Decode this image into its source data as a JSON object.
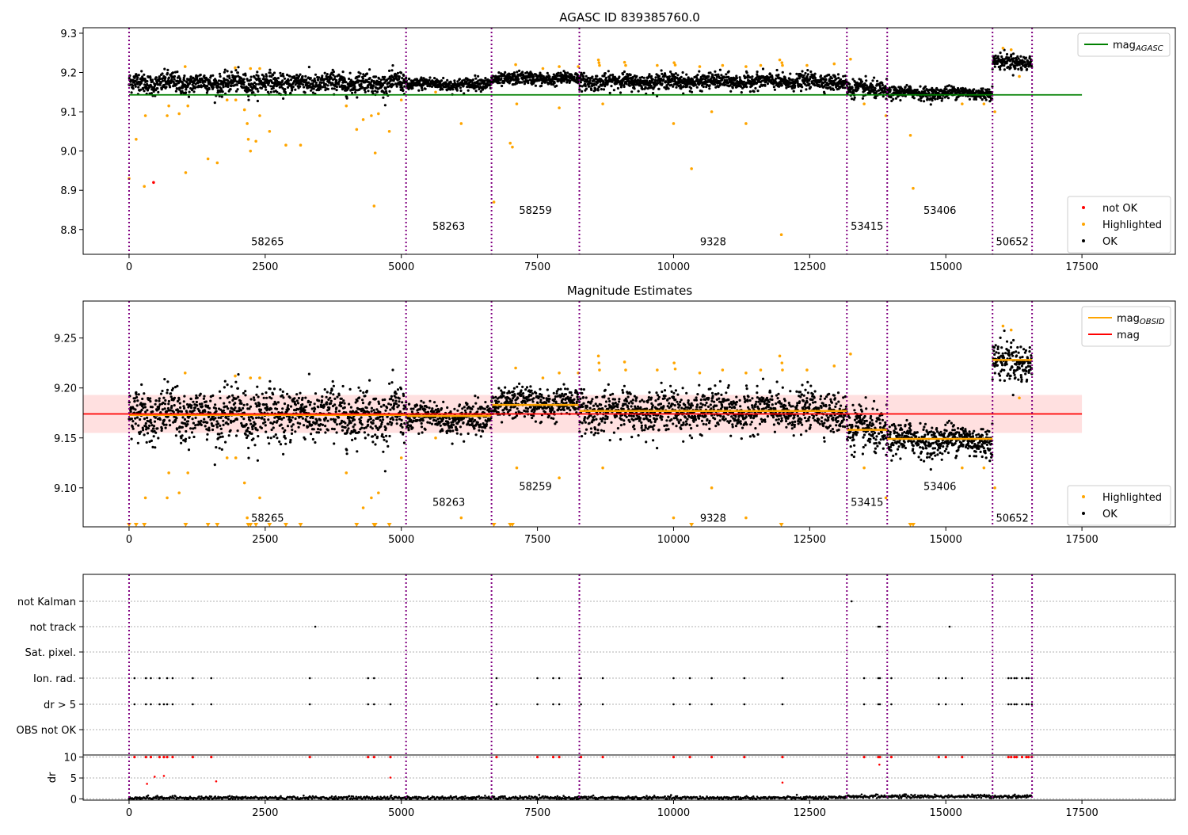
{
  "chart_data": {
    "type": "scatter",
    "xlim": [
      -843,
      19215
    ],
    "xticks": [
      0,
      2500,
      5000,
      7500,
      10000,
      12500,
      15000,
      17500
    ],
    "xtick_labels": [
      "0",
      "2500",
      "5000",
      "7500",
      "10000",
      "12500",
      "15000",
      "17500"
    ],
    "obsid_boundaries": [
      0,
      5087,
      6657,
      8270,
      13183,
      13924,
      15858,
      16584
    ],
    "segments": [
      {
        "obsid": "58265",
        "start": 0,
        "end": 5087,
        "mean": 9.173,
        "std": 0.013,
        "mag_obsid": 9.173
      },
      {
        "obsid": "58263",
        "start": 5087,
        "end": 6657,
        "mean": 9.17,
        "std": 0.008,
        "mag_obsid": 9.172
      },
      {
        "obsid": "58259",
        "start": 6657,
        "end": 8270,
        "mean": 9.184,
        "std": 0.008,
        "mag_obsid": 9.183
      },
      {
        "obsid": "9328",
        "start": 8270,
        "end": 13183,
        "mean": 9.177,
        "std": 0.01,
        "mag_obsid": 9.177
      },
      {
        "obsid": "53415",
        "start": 13183,
        "end": 13924,
        "mean": 9.157,
        "std": 0.011,
        "mag_obsid": 9.158
      },
      {
        "obsid": "53406",
        "start": 13924,
        "end": 15858,
        "mean": 9.148,
        "std": 0.008,
        "mag_obsid": 9.149
      },
      {
        "obsid": "50652",
        "start": 15858,
        "end": 16584,
        "mean": 9.226,
        "std": 0.01,
        "mag_obsid": 9.228
      }
    ],
    "panels": [
      {
        "title": "AGASC ID 839385760.0",
        "ylim": [
          8.737,
          9.314
        ],
        "yticks": [
          8.8,
          8.9,
          9.0,
          9.1,
          9.2,
          9.3
        ],
        "ytick_labels": [
          "8.8",
          "8.9",
          "9.0",
          "9.1",
          "9.2",
          "9.3"
        ],
        "mag_agasc": 9.143,
        "legend_top": [
          "mag_AGASC"
        ],
        "legend_bottom": [
          "not OK",
          "Highlighted",
          "OK"
        ]
      },
      {
        "title": "Magnitude Estimates",
        "ylim": [
          9.061,
          9.287
        ],
        "yticks": [
          9.1,
          9.15,
          9.2,
          9.25
        ],
        "ytick_labels": [
          "9.10",
          "9.15",
          "9.20",
          "9.25"
        ],
        "mag": 9.174,
        "mag_band": [
          9.155,
          9.193
        ],
        "legend_top": [
          "mag_OBSID",
          "mag"
        ],
        "legend_bottom": [
          "Highlighted",
          "OK"
        ]
      },
      {
        "flag_labels": [
          "not Kalman",
          "not track",
          "Sat. pixel.",
          "Ion. rad.",
          "dr > 5",
          "OBS not OK"
        ],
        "dr_ylabel": "dr",
        "dr_ylim": [
          -0.3,
          10.5
        ],
        "dr_yticks": [
          0,
          5,
          10
        ],
        "dr_ytick_labels": [
          "0",
          "5",
          "10"
        ]
      }
    ],
    "highlighted_low": [
      [
        0,
        8.93
      ],
      [
        130,
        9.03
      ],
      [
        280,
        8.91
      ],
      [
        300,
        9.09
      ],
      [
        700,
        9.09
      ],
      [
        730,
        9.115
      ],
      [
        920,
        9.095
      ],
      [
        1040,
        8.945
      ],
      [
        1080,
        9.115
      ],
      [
        1450,
        8.98
      ],
      [
        1620,
        8.97
      ],
      [
        1800,
        9.13
      ],
      [
        1960,
        9.13
      ],
      [
        2120,
        9.105
      ],
      [
        2170,
        9.07
      ],
      [
        2190,
        9.03
      ],
      [
        2230,
        9.0
      ],
      [
        2330,
        9.025
      ],
      [
        2400,
        9.09
      ],
      [
        2580,
        9.05
      ],
      [
        2880,
        9.015
      ],
      [
        3150,
        9.015
      ],
      [
        3990,
        9.115
      ],
      [
        4180,
        9.055
      ],
      [
        4300,
        9.08
      ],
      [
        4450,
        9.09
      ],
      [
        4500,
        8.86
      ],
      [
        4520,
        8.995
      ],
      [
        4580,
        9.095
      ],
      [
        4780,
        9.05
      ],
      [
        5000,
        9.13
      ],
      [
        5630,
        9.15
      ],
      [
        6100,
        9.07
      ],
      [
        6700,
        8.87
      ],
      [
        7000,
        9.02
      ],
      [
        7040,
        9.01
      ],
      [
        7120,
        9.12
      ],
      [
        7900,
        9.11
      ],
      [
        8700,
        9.12
      ],
      [
        10000,
        9.07
      ],
      [
        10330,
        8.955
      ],
      [
        10700,
        9.1
      ],
      [
        11330,
        9.07
      ],
      [
        11980,
        8.787
      ],
      [
        13500,
        9.12
      ],
      [
        13900,
        9.09
      ],
      [
        14350,
        9.04
      ],
      [
        14400,
        8.905
      ],
      [
        15300,
        9.12
      ],
      [
        15700,
        9.12
      ],
      [
        15900,
        9.1
      ]
    ],
    "highlighted_high": [
      [
        1030,
        9.215
      ],
      [
        1950,
        9.212
      ],
      [
        2230,
        9.21
      ],
      [
        2400,
        9.21
      ],
      [
        7100,
        9.22
      ],
      [
        7600,
        9.21
      ],
      [
        7900,
        9.215
      ],
      [
        8250,
        9.215
      ],
      [
        8620,
        9.232
      ],
      [
        8630,
        9.225
      ],
      [
        8640,
        9.218
      ],
      [
        9100,
        9.226
      ],
      [
        9120,
        9.218
      ],
      [
        9700,
        9.218
      ],
      [
        10010,
        9.225
      ],
      [
        10030,
        9.219
      ],
      [
        10480,
        9.215
      ],
      [
        10900,
        9.218
      ],
      [
        11330,
        9.215
      ],
      [
        11600,
        9.218
      ],
      [
        11950,
        9.232
      ],
      [
        11990,
        9.225
      ],
      [
        12000,
        9.218
      ],
      [
        12450,
        9.218
      ],
      [
        12950,
        9.222
      ],
      [
        13250,
        9.234
      ],
      [
        16050,
        9.262
      ],
      [
        16200,
        9.258
      ],
      [
        16350,
        9.19
      ]
    ],
    "not_ok": [
      [
        450,
        8.92
      ]
    ],
    "flags": {
      "not Kalman": [
        13270
      ],
      "not track": [
        3420,
        13760,
        13790,
        15070
      ],
      "Ion. rad.": [
        100,
        310,
        400,
        560,
        700,
        800,
        1170,
        1510,
        3320,
        4390,
        4500,
        6750,
        7500,
        7790,
        7900,
        8300,
        8700,
        10000,
        10300,
        10700,
        11300,
        12000,
        13500,
        13760,
        13790,
        14000,
        14870,
        15000,
        15300,
        16150,
        16200,
        16260,
        16300,
        16400,
        16480,
        16520,
        16580
      ],
      "dr > 5": [
        100,
        310,
        400,
        560,
        640,
        700,
        800,
        1170,
        1510,
        3320,
        4390,
        4500,
        4800,
        6750,
        7500,
        7790,
        7900,
        8300,
        8700,
        10000,
        10300,
        10700,
        11300,
        12000,
        13500,
        13760,
        13790,
        14000,
        14870,
        15000,
        15300,
        16150,
        16200,
        16260,
        16300,
        16400,
        16480,
        16520,
        16580
      ]
    },
    "dr_outliers": [
      [
        100,
        10
      ],
      [
        330,
        3.6
      ],
      [
        470,
        5.3
      ],
      [
        640,
        5.5
      ],
      [
        1600,
        4.2
      ],
      [
        4800,
        5.1
      ],
      [
        12000,
        3.9
      ],
      [
        13780,
        8.2
      ]
    ]
  }
}
